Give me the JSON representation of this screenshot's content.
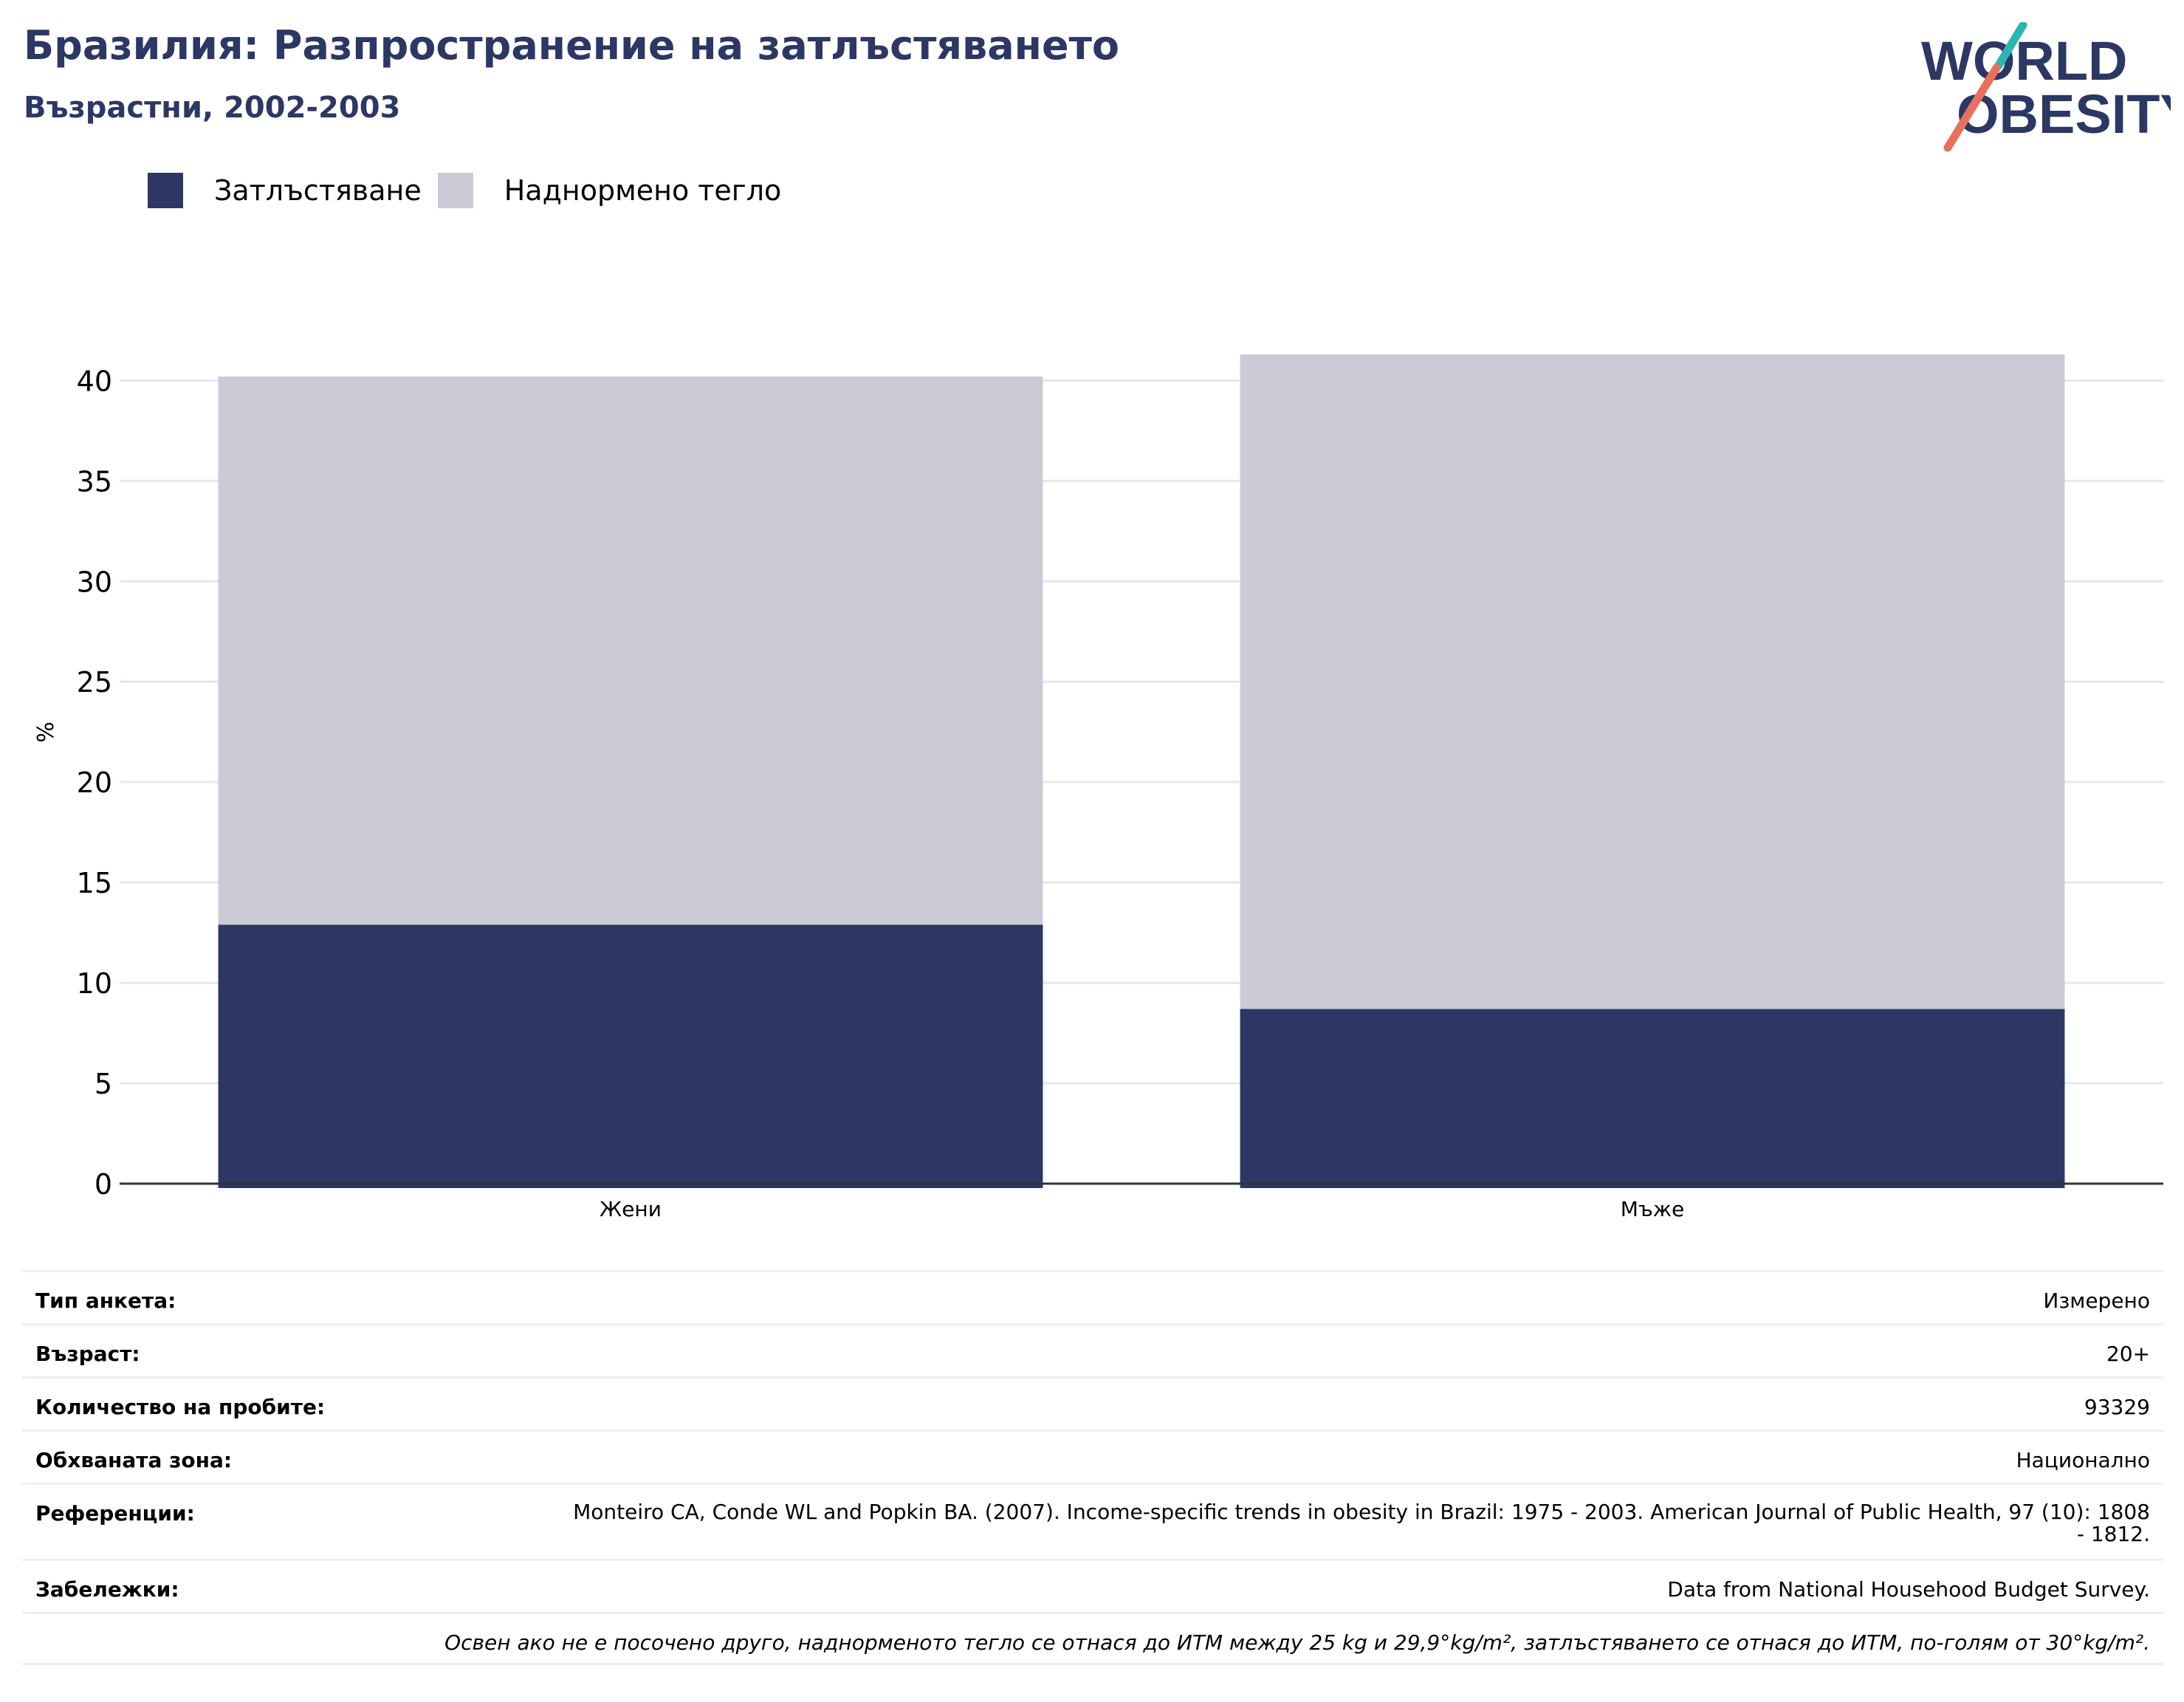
{
  "header": {
    "title": "Бразилия: Разпространение на затлъстяването",
    "subtitle": "Възрастни, 2002-2003"
  },
  "logo": {
    "line1": "WORLD",
    "line2": "OBESITY",
    "colors": {
      "text": "#2c3764",
      "accent_teal": "#2bb5b3",
      "accent_coral": "#e8715d"
    }
  },
  "legend": {
    "items": [
      {
        "label": "Затлъстяване",
        "color": "#2c3764"
      },
      {
        "label": "Наднормено тегло",
        "color": "#cacbd7"
      }
    ]
  },
  "chart_data": {
    "type": "bar",
    "stacked": true,
    "categories": [
      "Жени",
      "Мъже"
    ],
    "series": [
      {
        "name": "Затлъстяване",
        "values": [
          12.9,
          8.7
        ],
        "color": "#2c3764"
      },
      {
        "name": "Наднормено тегло",
        "values": [
          27.3,
          32.6
        ],
        "color": "#cacbd7"
      }
    ],
    "ylabel": "%",
    "ylim": [
      0,
      41.3
    ],
    "yticks": [
      0,
      5,
      10,
      15,
      20,
      25,
      30,
      35,
      40
    ],
    "grid": true,
    "legend_position": "top-left"
  },
  "info": {
    "rows": [
      {
        "label": "Тип анкета:",
        "value": "Измерено"
      },
      {
        "label": "Възраст:",
        "value": "20+"
      },
      {
        "label": "Количество на пробите:",
        "value": "93329"
      },
      {
        "label": "Обхваната зона:",
        "value": "Национално"
      },
      {
        "label": "Референции:",
        "value": "Monteiro CA, Conde WL and Popkin BA. (2007). Income-specific trends in obesity in Brazil: 1975 - 2003. American Journal of Public Health, 97 (10): 1808 - 1812."
      },
      {
        "label": "Забележки:",
        "value": "Data from National Househood Budget Survey."
      }
    ],
    "footnote": "Освен ако не е посочено друго, наднорменото тегло се отнася до ИТМ между 25 kg и 29,9°kg/m², затлъстяването се отнася до ИТМ, по-голям от 30°kg/m²."
  }
}
